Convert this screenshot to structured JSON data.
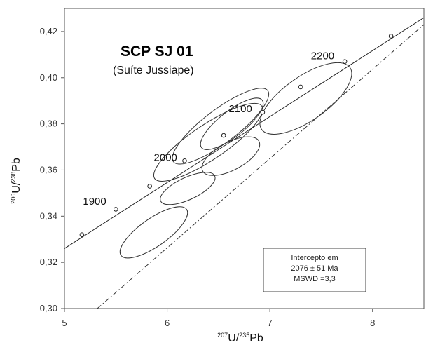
{
  "chart_data": {
    "type": "scatter",
    "title": "SCP SJ 01",
    "subtitle": "(Suíte Jussiape)",
    "x_label_parts": [
      {
        "sup": "207"
      },
      {
        "t": "U/"
      },
      {
        "sup": "235"
      },
      {
        "t": "Pb"
      }
    ],
    "y_label_parts": [
      {
        "sup": "206"
      },
      {
        "t": "U/"
      },
      {
        "sup": "238"
      },
      {
        "t": "Pb"
      }
    ],
    "xlim": [
      5,
      8.5
    ],
    "ylim": [
      0.3,
      0.43
    ],
    "x_ticks": [
      5,
      6,
      7,
      8
    ],
    "x_tick_labels": [
      "5",
      "6",
      "7",
      "8"
    ],
    "y_ticks": [
      0.3,
      0.32,
      0.34,
      0.36,
      0.38,
      0.4,
      0.42
    ],
    "y_tick_labels": [
      "0,30",
      "0,32",
      "0,34",
      "0,36",
      "0,38",
      "0,40",
      "0,42"
    ],
    "concordia_points": [
      {
        "x": 5.17,
        "y": 0.332
      },
      {
        "x": 5.5,
        "y": 0.343
      },
      {
        "x": 5.83,
        "y": 0.353
      },
      {
        "x": 6.17,
        "y": 0.364
      },
      {
        "x": 6.55,
        "y": 0.375
      },
      {
        "x": 6.93,
        "y": 0.385
      },
      {
        "x": 7.3,
        "y": 0.396
      },
      {
        "x": 7.73,
        "y": 0.407
      },
      {
        "x": 8.18,
        "y": 0.418
      }
    ],
    "age_labels": [
      {
        "text": "1900",
        "x": 5.18,
        "y": 0.345
      },
      {
        "text": "2000",
        "x": 5.87,
        "y": 0.364
      },
      {
        "text": "2100",
        "x": 6.6,
        "y": 0.385
      },
      {
        "text": "2200",
        "x": 7.4,
        "y": 0.408
      }
    ],
    "concordia_curve": [
      [
        5.0,
        0.326
      ],
      [
        8.5,
        0.426
      ]
    ],
    "discordia_line": [
      [
        5.32,
        0.3
      ],
      [
        8.5,
        0.423
      ]
    ],
    "error_ellipses": [
      {
        "cx": 5.87,
        "cy": 0.333,
        "rx": 0.78,
        "ry": 0.006,
        "angle_deg": 35
      },
      {
        "cx": 6.4,
        "cy": 0.372,
        "rx": 1.26,
        "ry": 0.0075,
        "angle_deg": 34
      },
      {
        "cx": 6.52,
        "cy": 0.379,
        "rx": 1.15,
        "ry": 0.0072,
        "angle_deg": 37
      },
      {
        "cx": 6.63,
        "cy": 0.38,
        "rx": 0.75,
        "ry": 0.0055,
        "angle_deg": 38
      },
      {
        "cx": 6.62,
        "cy": 0.366,
        "rx": 0.62,
        "ry": 0.006,
        "angle_deg": 28
      },
      {
        "cx": 6.2,
        "cy": 0.352,
        "rx": 0.58,
        "ry": 0.0048,
        "angle_deg": 25
      },
      {
        "cx": 7.35,
        "cy": 0.391,
        "rx": 1.05,
        "ry": 0.0095,
        "angle_deg": 35
      }
    ],
    "annotation_box": {
      "lines": [
        "Intercepto em",
        "2076 ± 51 Ma",
        "MSWD =3,3"
      ]
    },
    "legend": "none",
    "grid": false
  }
}
